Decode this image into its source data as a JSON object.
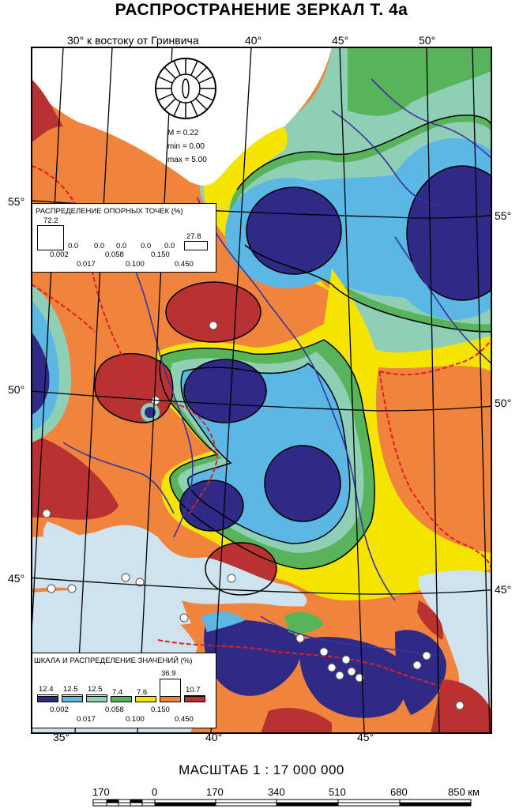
{
  "title": "РАСПРОСТРАНЕНИЕ ЗЕРКАЛ Т. 4а",
  "top_labels": {
    "lon30": "30° к востоку от Гринвича",
    "lon40": "40°",
    "lon45": "45°",
    "lon50": "50°"
  },
  "side_labels": {
    "left55": "55°",
    "left50": "50°",
    "left45": "45°",
    "right55": "55°",
    "right50": "50°",
    "right45": "45°"
  },
  "bottom_labels": {
    "lon35": "35°",
    "lon40": "40°",
    "lon45": "45°"
  },
  "stats": {
    "m": "M = 0.22",
    "min": "min = 0.00",
    "max": "max = 5.00"
  },
  "point_distribution": {
    "title": "РАСПРЕДЕЛЕНИЕ ОПОРНЫХ ТОЧЕК (%)",
    "first": "72.2",
    "last": "27.8",
    "middle": [
      "0.0",
      "0.0",
      "0.0",
      "0.0",
      "0.0"
    ],
    "thresholds_low": [
      "0.002",
      "0.058",
      "0.150"
    ],
    "thresholds_high": [
      "0.017",
      "0.100",
      "0.450"
    ]
  },
  "value_scale": {
    "title": "ШКАЛА И РАСПРЕДЕЛЕНИЕ ЗНАЧЕНИЙ (%)",
    "percents": [
      "12.4",
      "12.5",
      "12.5",
      "7.4",
      "7.6",
      "36.9",
      "10.7"
    ],
    "colors": [
      "#2e2a86",
      "#5bb8e4",
      "#8ecfb6",
      "#58b45b",
      "#f4e400",
      "#f0843c",
      "#b83232"
    ],
    "thresholds_low": [
      "0.002",
      "0.058",
      "0.150"
    ],
    "thresholds_high": [
      "0.017",
      "0.100",
      "0.450"
    ]
  },
  "scale": {
    "title": "МАСШТАБ 1 : 17 000 000",
    "ticks": [
      "170",
      "0",
      "170",
      "340",
      "510",
      "680",
      "850 км"
    ]
  },
  "colors": {
    "class1": "#2e2a86",
    "class2": "#5bb8e4",
    "class3": "#8ecfb6",
    "class4": "#58b45b",
    "class5": "#f4e400",
    "class6": "#f0843c",
    "class7": "#b83232",
    "sea": "#cfe3ee",
    "rivers": "#3a33a0",
    "borders": "#e02020"
  }
}
